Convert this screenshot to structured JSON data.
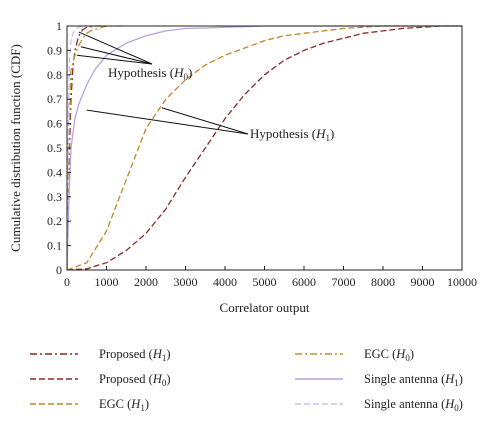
{
  "chart_data": {
    "type": "line",
    "xlabel": "Correlator output",
    "ylabel": "Cumulative distribution function (CDF)",
    "xlim": [
      0,
      10000
    ],
    "ylim": [
      0,
      1
    ],
    "xticks": [
      0,
      1000,
      2000,
      3000,
      4000,
      5000,
      6000,
      7000,
      8000,
      9000,
      10000
    ],
    "xtick_labels": [
      "0",
      "1000",
      "2000",
      "3000",
      "4000",
      "5000",
      "6000",
      "7000",
      "8000",
      "9000",
      "10000"
    ],
    "yticks": [
      0,
      0.1,
      0.2,
      0.3,
      0.4,
      0.5,
      0.6,
      0.7,
      0.8,
      0.9,
      1
    ],
    "ytick_labels": [
      "0",
      "0.1",
      "0.2",
      "0.3",
      "0.4",
      "0.5",
      "0.6",
      "0.7",
      "0.8",
      "0.9",
      "1"
    ],
    "grid": false,
    "legend_position": "below",
    "annotations": [
      {
        "id": "h0",
        "text_main": "Hypothesis (",
        "text_var": "H",
        "text_sub": "0",
        "text_end": ")",
        "pointer_targets": [
          [
            300,
            0.975
          ],
          [
            350,
            0.915
          ],
          [
            250,
            0.88
          ]
        ]
      },
      {
        "id": "h1",
        "text_main": "Hypothesis (",
        "text_var": "H",
        "text_sub": "1",
        "text_end": ")",
        "pointer_targets": [
          [
            500,
            0.655
          ],
          [
            2400,
            0.665
          ]
        ]
      }
    ],
    "series": [
      {
        "name_main": "Proposed (",
        "name_var": "H",
        "name_sub": "1",
        "name_end": ")",
        "color": "#8b2a22",
        "dash": "dashdot",
        "x": [
          0,
          50,
          100,
          150,
          200,
          300,
          400,
          500,
          700,
          1000
        ],
        "y": [
          0,
          0.42,
          0.7,
          0.83,
          0.9,
          0.96,
          0.985,
          0.995,
          1.0,
          1.0
        ]
      },
      {
        "name_main": "Proposed (",
        "name_var": "H",
        "name_sub": "0",
        "name_end": ")",
        "color": "#8b2a22",
        "dash": "dashed",
        "x": [
          0,
          500,
          1000,
          1500,
          2000,
          2500,
          3000,
          3500,
          4000,
          4500,
          5000,
          5500,
          6000,
          6500,
          7000,
          7500,
          8000,
          8500,
          9000,
          9500,
          10000
        ],
        "y": [
          0,
          0.005,
          0.03,
          0.08,
          0.15,
          0.25,
          0.38,
          0.5,
          0.62,
          0.72,
          0.8,
          0.86,
          0.9,
          0.93,
          0.95,
          0.97,
          0.98,
          0.99,
          0.995,
          1.0,
          1.0
        ]
      },
      {
        "name_main": "EGC (",
        "name_var": "H",
        "name_sub": "1",
        "name_end": ")",
        "color": "#c0862a",
        "dash": "dashed",
        "x": [
          0,
          500,
          1000,
          1500,
          2000,
          2500,
          3000,
          3500,
          4000,
          4500,
          5000,
          5500,
          6000,
          6500,
          7000,
          7500,
          8000,
          8500,
          9000,
          10000
        ],
        "y": [
          0,
          0.03,
          0.16,
          0.37,
          0.58,
          0.7,
          0.78,
          0.84,
          0.88,
          0.91,
          0.94,
          0.96,
          0.97,
          0.98,
          0.99,
          0.995,
          1.0,
          1.0,
          1.0,
          1.0
        ]
      },
      {
        "name_main": "EGC (",
        "name_var": "H",
        "name_sub": "0",
        "name_end": ")",
        "color": "#b9972f",
        "dash": "dashdot",
        "x": [
          0,
          50,
          100,
          200,
          300,
          400,
          500,
          600,
          800,
          1000,
          1500
        ],
        "y": [
          0,
          0.5,
          0.82,
          0.88,
          0.92,
          0.95,
          0.97,
          0.98,
          0.99,
          1.0,
          1.0
        ]
      },
      {
        "name_main": "Single antenna (",
        "name_var": "H",
        "name_sub": "1",
        "name_end": ")",
        "color": "#b6a3e0",
        "dash": "solid",
        "x": [
          0,
          50,
          100,
          200,
          300,
          500,
          700,
          1000,
          1500,
          2000,
          2500,
          3000,
          3500,
          4000,
          4500,
          5000,
          6000,
          7000,
          10000
        ],
        "y": [
          0,
          0.3,
          0.5,
          0.62,
          0.68,
          0.76,
          0.82,
          0.88,
          0.93,
          0.96,
          0.98,
          0.99,
          0.992,
          0.995,
          0.997,
          1.0,
          1.0,
          1.0,
          1.0
        ]
      },
      {
        "name_main": "Single antenna (",
        "name_var": "H",
        "name_sub": "0",
        "name_end": ")",
        "color": "#c9c3f2",
        "dash": "dashed",
        "x": [
          0,
          30,
          60,
          100,
          150,
          200,
          300,
          400,
          600
        ],
        "y": [
          0,
          0.55,
          0.85,
          0.94,
          0.97,
          0.985,
          0.995,
          1.0,
          1.0
        ]
      }
    ]
  }
}
